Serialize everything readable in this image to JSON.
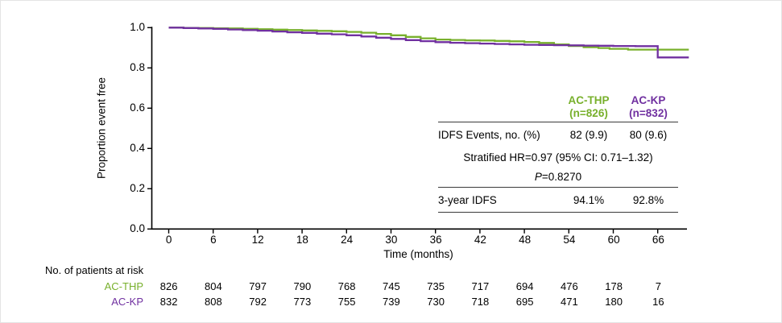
{
  "chart_data": {
    "type": "line",
    "subtype": "kaplan-meier-step",
    "title": "",
    "xlabel": "Time (months)",
    "ylabel": "Proportion event free",
    "xlim": [
      0,
      70.5
    ],
    "ylim": [
      0.0,
      1.0
    ],
    "xticks": [
      0,
      6,
      12,
      18,
      24,
      30,
      36,
      42,
      48,
      54,
      60,
      66
    ],
    "ytick_labels": [
      "0.0",
      "0.2",
      "0.4",
      "0.6",
      "0.8",
      "1.0"
    ],
    "grid": false,
    "legend_position": "inside-table",
    "axis_color": "#000000",
    "series": [
      {
        "name": "AC-THP",
        "color": "#78B02C",
        "points": [
          [
            0,
            1.0
          ],
          [
            2,
            0.999
          ],
          [
            4,
            0.998
          ],
          [
            6,
            0.997
          ],
          [
            8,
            0.996
          ],
          [
            10,
            0.994
          ],
          [
            12,
            0.992
          ],
          [
            14,
            0.99
          ],
          [
            16,
            0.988
          ],
          [
            18,
            0.986
          ],
          [
            20,
            0.984
          ],
          [
            22,
            0.982
          ],
          [
            24,
            0.979
          ],
          [
            26,
            0.975
          ],
          [
            28,
            0.969
          ],
          [
            30,
            0.962
          ],
          [
            32,
            0.954
          ],
          [
            34,
            0.947
          ],
          [
            36,
            0.941
          ],
          [
            38,
            0.939
          ],
          [
            40,
            0.937
          ],
          [
            42,
            0.936
          ],
          [
            44,
            0.934
          ],
          [
            46,
            0.932
          ],
          [
            48,
            0.929
          ],
          [
            50,
            0.924
          ],
          [
            52,
            0.917
          ],
          [
            54,
            0.909
          ],
          [
            56,
            0.903
          ],
          [
            58,
            0.899
          ],
          [
            59.5,
            0.895
          ],
          [
            62,
            0.891
          ],
          [
            70.2,
            0.891
          ]
        ]
      },
      {
        "name": "AC-KP",
        "color": "#7030A0",
        "points": [
          [
            0,
            1.0
          ],
          [
            2,
            0.998
          ],
          [
            4,
            0.996
          ],
          [
            6,
            0.994
          ],
          [
            8,
            0.991
          ],
          [
            10,
            0.988
          ],
          [
            12,
            0.985
          ],
          [
            14,
            0.981
          ],
          [
            16,
            0.977
          ],
          [
            18,
            0.974
          ],
          [
            20,
            0.97
          ],
          [
            22,
            0.967
          ],
          [
            24,
            0.962
          ],
          [
            26,
            0.956
          ],
          [
            28,
            0.95
          ],
          [
            30,
            0.944
          ],
          [
            32,
            0.938
          ],
          [
            34,
            0.933
          ],
          [
            36,
            0.928
          ],
          [
            38,
            0.925
          ],
          [
            40,
            0.923
          ],
          [
            42,
            0.921
          ],
          [
            44,
            0.919
          ],
          [
            46,
            0.917
          ],
          [
            48,
            0.915
          ],
          [
            50,
            0.914
          ],
          [
            52,
            0.913
          ],
          [
            54,
            0.912
          ],
          [
            56,
            0.911
          ],
          [
            58,
            0.91
          ],
          [
            60,
            0.909
          ],
          [
            63,
            0.908
          ],
          [
            66,
            0.852
          ],
          [
            70.2,
            0.852
          ]
        ]
      }
    ]
  },
  "stats_table": {
    "columns": [
      {
        "name": "AC-THP",
        "n_label": "(n=826)",
        "color": "#78B02C"
      },
      {
        "name": "AC-KP",
        "n_label": "(n=832)",
        "color": "#7030A0"
      }
    ],
    "rows": {
      "idfs_label": "IDFS Events, no. (%)",
      "idfs_values": [
        "82 (9.9)",
        "80 (9.6)"
      ],
      "hr_text": "Stratified HR=0.97 (95% CI: 0.71–1.32)",
      "p_italic": "P",
      "p_rest": "=0.8270",
      "idfs3_label": "3-year IDFS",
      "idfs3_values": [
        "94.1%",
        "92.8%"
      ]
    }
  },
  "risk_table": {
    "title": "No. of patients at risk",
    "rows": [
      {
        "label": "AC-THP",
        "color": "#78B02C",
        "counts": [
          826,
          804,
          797,
          790,
          768,
          745,
          735,
          717,
          694,
          476,
          178,
          7
        ]
      },
      {
        "label": "AC-KP",
        "color": "#7030A0",
        "counts": [
          832,
          808,
          792,
          773,
          755,
          739,
          730,
          718,
          695,
          471,
          180,
          16
        ]
      }
    ]
  }
}
